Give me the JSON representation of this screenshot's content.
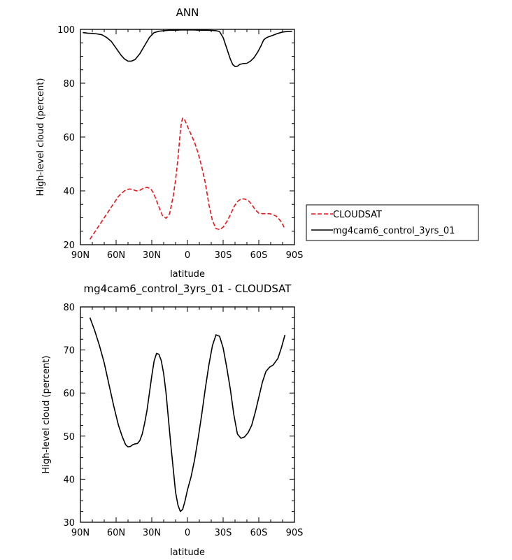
{
  "legend": {
    "entries": [
      {
        "label": "CLOUDSAT",
        "color": "#e8141b",
        "dash": "dashed"
      },
      {
        "label": "mg4cam6_control_3yrs_01",
        "color": "#000000",
        "dash": "solid"
      }
    ]
  },
  "chart_data": [
    {
      "type": "line",
      "title": "ANN",
      "xlabel": "latitude",
      "ylabel": "High-level cloud (percent)",
      "xlim": [
        90,
        -90
      ],
      "ylim": [
        20,
        100
      ],
      "xticks": [
        90,
        60,
        30,
        0,
        -30,
        -60,
        -90
      ],
      "xtick_labels": [
        "90N",
        "60N",
        "30N",
        "0",
        "30S",
        "60S",
        "90S"
      ],
      "yticks": [
        20,
        40,
        60,
        80,
        100
      ],
      "ytick_labels": [
        "20",
        "40",
        "60",
        "80",
        "100"
      ],
      "grid": false,
      "legend_position": "right",
      "series": [
        {
          "name": "CLOUDSAT",
          "color": "#e8141b",
          "dash": "dashed",
          "x": [
            82,
            76,
            70,
            64,
            58,
            53,
            49,
            46,
            43,
            40,
            37,
            34,
            31,
            29,
            27,
            24,
            21,
            18,
            15,
            12,
            10,
            8,
            7,
            6,
            5,
            4,
            3,
            2,
            0,
            -3,
            -6,
            -9,
            -12,
            -15,
            -18,
            -21,
            -24,
            -27,
            -30,
            -33,
            -36,
            -39,
            -42,
            -45,
            -48,
            -51,
            -54,
            -57,
            -60,
            -63,
            -66,
            -69,
            -72,
            -75,
            -79,
            -82
          ],
          "y": [
            22,
            26,
            30,
            34,
            38,
            40,
            40.7,
            40.5,
            40,
            40.2,
            41,
            41.3,
            40.8,
            39.5,
            37.5,
            34,
            30.8,
            29.8,
            31.5,
            38,
            44,
            52,
            57,
            62,
            65.5,
            67,
            67,
            66,
            64,
            61,
            58,
            54,
            49,
            43,
            35,
            29,
            26,
            25.6,
            26.5,
            28.5,
            31,
            34,
            36,
            37,
            37,
            36.5,
            35,
            33,
            31.7,
            31.5,
            31.5,
            31.5,
            31.2,
            30.5,
            28.5,
            25.8
          ]
        },
        {
          "name": "mg4cam6_control_3yrs_01",
          "color": "#000000",
          "dash": "solid",
          "x": [
            88,
            84,
            80,
            76,
            72,
            68,
            64,
            60,
            56,
            53,
            50,
            47,
            44,
            40,
            36,
            32,
            28,
            24,
            20,
            15,
            10,
            5,
            0,
            -5,
            -10,
            -15,
            -20,
            -24,
            -27,
            -30,
            -33,
            -36,
            -38,
            -40,
            -42,
            -44,
            -47,
            -50,
            -53,
            -56,
            -59,
            -62,
            -64,
            -66,
            -68,
            -70,
            -73,
            -76,
            -80,
            -84,
            -88
          ],
          "y": [
            98.8,
            98.6,
            98.5,
            98.3,
            98,
            97,
            95.5,
            93,
            90.5,
            89,
            88.2,
            88.2,
            88.8,
            91,
            94,
            97,
            98.8,
            99.3,
            99.5,
            99.7,
            99.7,
            99.8,
            99.8,
            99.8,
            99.7,
            99.7,
            99.6,
            99.5,
            99.2,
            97,
            93,
            89,
            87,
            86.2,
            86.3,
            87,
            87.3,
            87.4,
            88.2,
            89.5,
            91.5,
            94,
            96,
            96.8,
            97.2,
            97.5,
            98,
            98.5,
            99,
            99.2,
            99.3
          ]
        }
      ]
    },
    {
      "type": "line",
      "title": "mg4cam6_control_3yrs_01 - CLOUDSAT",
      "xlabel": "latitude",
      "ylabel": "High-level cloud (percent)",
      "xlim": [
        90,
        -90
      ],
      "ylim": [
        30,
        80
      ],
      "xticks": [
        90,
        60,
        30,
        0,
        -30,
        -60,
        -90
      ],
      "xtick_labels": [
        "90N",
        "60N",
        "30N",
        "0",
        "30S",
        "60S",
        "90S"
      ],
      "yticks": [
        30,
        40,
        50,
        60,
        70,
        80
      ],
      "ytick_labels": [
        "30",
        "40",
        "50",
        "60",
        "70",
        "80"
      ],
      "grid": false,
      "series": [
        {
          "color": "#000000",
          "dash": "solid",
          "x": [
            82,
            78,
            74,
            70,
            66,
            62,
            58,
            55,
            52,
            50,
            48,
            46,
            44,
            42,
            40,
            38,
            36,
            34,
            32,
            30,
            28,
            26,
            24,
            22,
            20,
            18,
            16,
            14,
            12,
            10,
            8,
            6,
            4,
            2,
            0,
            -3,
            -6,
            -9,
            -12,
            -15,
            -18,
            -21,
            -24,
            -27,
            -30,
            -33,
            -36,
            -39,
            -42,
            -45,
            -48,
            -51,
            -54,
            -57,
            -60,
            -63,
            -66,
            -69,
            -72,
            -76,
            -79,
            -82
          ],
          "y": [
            77.5,
            74.5,
            71,
            67,
            62,
            57,
            52.5,
            50,
            48,
            47.5,
            47.6,
            48,
            48.2,
            48.3,
            49,
            50.5,
            53,
            56,
            60,
            64,
            67.5,
            69.2,
            69,
            67.5,
            64.5,
            60,
            54,
            48,
            42.5,
            37,
            34,
            32.5,
            33,
            35,
            37.5,
            40.5,
            44.5,
            49.5,
            55,
            61,
            66.5,
            71,
            73.5,
            73.2,
            70.5,
            66,
            61,
            55,
            50.5,
            49.5,
            49.8,
            50.8,
            52.5,
            55.5,
            59,
            62.5,
            65,
            66,
            66.5,
            68,
            70.5,
            73.5
          ]
        }
      ]
    }
  ]
}
